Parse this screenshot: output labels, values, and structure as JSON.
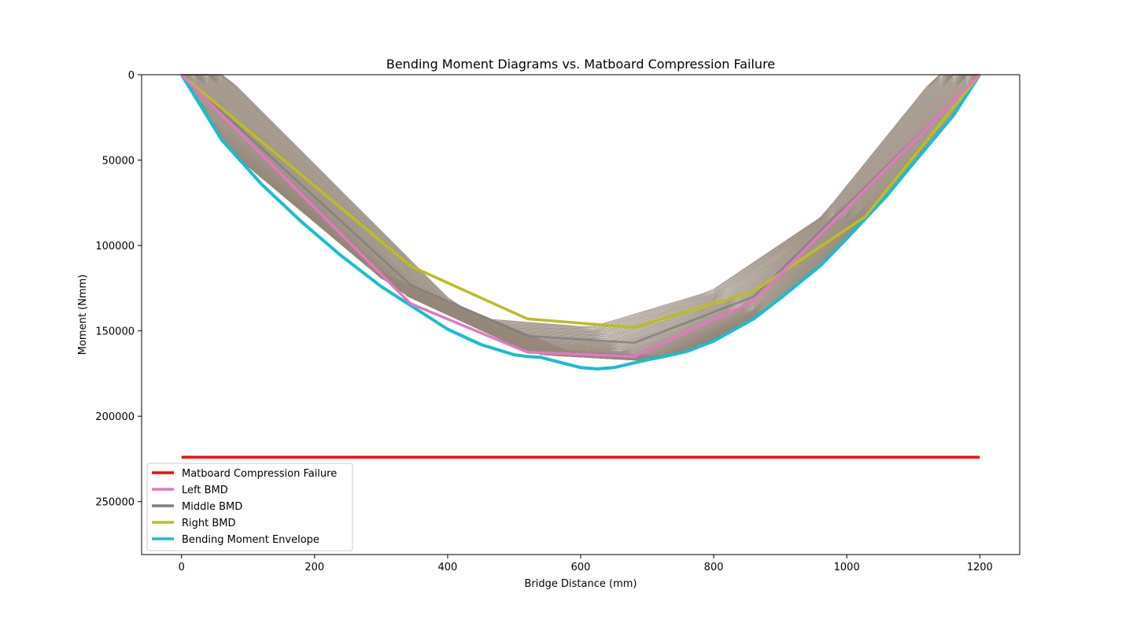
{
  "chart_data": {
    "type": "line",
    "title": "Bending Moment Diagrams vs. Matboard Compression Failure",
    "xlabel": "Bridge Distance (mm)",
    "ylabel": "Moment (Nmm)",
    "xlim": [
      -60,
      1260
    ],
    "ylim": [
      281000,
      0
    ],
    "y_inverted": true,
    "x_ticks": [
      0,
      200,
      400,
      600,
      800,
      1000,
      1200
    ],
    "y_ticks": [
      0,
      50000,
      100000,
      150000,
      200000,
      250000
    ],
    "x_tick_labels": [
      "0",
      "200",
      "400",
      "600",
      "800",
      "1000",
      "1200"
    ],
    "y_tick_labels": [
      "0",
      "50000",
      "100000",
      "150000",
      "200000",
      "250000"
    ],
    "grid": false,
    "legend_position": "lower-left",
    "series": [
      {
        "name": "Matboard Compression Failure",
        "color": "#ff0000",
        "x": [
          0,
          1200
        ],
        "y": [
          224000,
          224000
        ]
      },
      {
        "name": "Left BMD",
        "color": "#e377c2",
        "x": [
          0,
          344,
          520,
          680,
          860,
          1200
        ],
        "y": [
          0,
          134000,
          162500,
          165000,
          132500,
          0
        ]
      },
      {
        "name": "Middle BMD",
        "color": "#7f7f7f",
        "x": [
          0,
          344,
          520,
          680,
          860,
          1200
        ],
        "y": [
          0,
          123000,
          153000,
          157000,
          130000,
          0
        ]
      },
      {
        "name": "Right BMD",
        "color": "#bcbd22",
        "x": [
          0,
          344,
          520,
          680,
          860,
          1028,
          1200
        ],
        "y": [
          0,
          112000,
          143000,
          148000,
          127000,
          83000,
          0
        ]
      },
      {
        "name": "Bending Moment Envelope",
        "color": "#17becf",
        "x": [
          0,
          60,
          120,
          180,
          240,
          300,
          344,
          400,
          450,
          500,
          520,
          540,
          600,
          625,
          650,
          700,
          720,
          760,
          800,
          860,
          900,
          960,
          1000,
          1060,
          1100,
          1160,
          1200
        ],
        "y": [
          0,
          38000,
          64000,
          86000,
          106000,
          124000,
          135000,
          149000,
          158000,
          164000,
          165000,
          165500,
          171500,
          172300,
          171500,
          167000,
          165500,
          162000,
          156000,
          143000,
          131000,
          112000,
          96000,
          71000,
          52000,
          24000,
          0
        ]
      }
    ]
  }
}
